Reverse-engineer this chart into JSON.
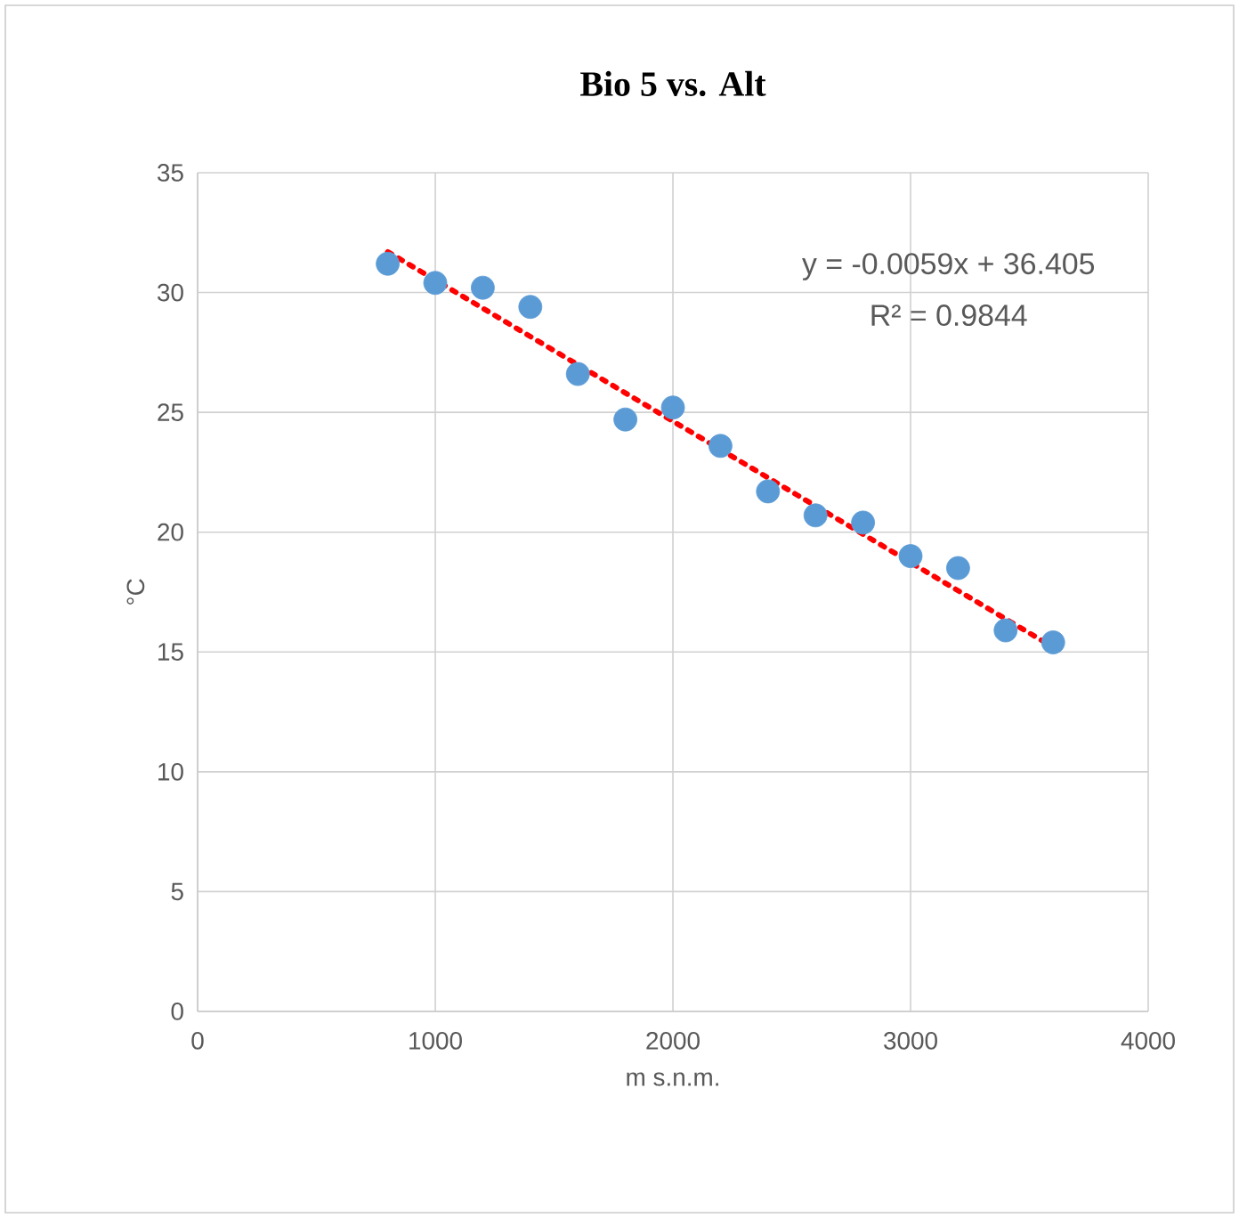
{
  "chart_data": {
    "type": "scatter",
    "title": "Bio 5 vs. Alt",
    "xlabel": "m s.n.m.",
    "ylabel": "°C",
    "xlim": [
      0,
      4000
    ],
    "xticks": [
      0,
      1000,
      2000,
      3000,
      4000
    ],
    "ylim": [
      0,
      35
    ],
    "yticks": [
      0,
      5,
      10,
      15,
      20,
      25,
      30,
      35
    ],
    "grid": true,
    "series": [
      {
        "marker": "circle",
        "color": "#5b9bd5",
        "x": [
          800,
          1000,
          1200,
          1400,
          1600,
          1800,
          2000,
          2200,
          2400,
          2600,
          2800,
          3000,
          3200,
          3400,
          3600
        ],
        "values": [
          31.2,
          30.4,
          30.2,
          29.4,
          26.6,
          24.7,
          25.2,
          23.6,
          21.7,
          20.7,
          20.4,
          19.0,
          18.5,
          15.9,
          15.4
        ]
      },
      {
        "type": "line",
        "color": "#ff0000",
        "line_style": "dotted",
        "marker": "none",
        "x": [
          800,
          3600
        ],
        "values": [
          31.7,
          15.2
        ]
      }
    ],
    "annotations": [
      "y = -0.0059x + 36.405",
      "R² = 0.9844"
    ]
  }
}
